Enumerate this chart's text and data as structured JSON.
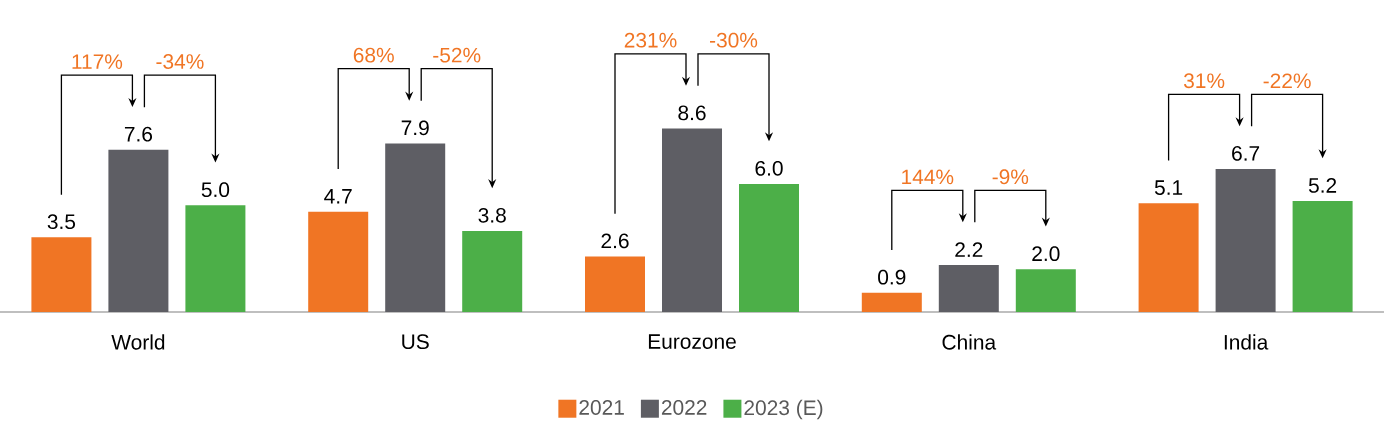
{
  "chart_data": {
    "type": "bar",
    "categories": [
      "World",
      "US",
      "Eurozone",
      "China",
      "India"
    ],
    "series": [
      {
        "name": "2021",
        "color": "#f07524",
        "values": [
          3.5,
          4.7,
          2.6,
          0.9,
          5.1
        ],
        "value_labels": [
          "3.5",
          "4.7",
          "2.6",
          "0.9",
          "5.1"
        ]
      },
      {
        "name": "2022",
        "color": "#5e5e64",
        "values": [
          7.6,
          7.9,
          8.6,
          2.2,
          6.7
        ],
        "value_labels": [
          "7.6",
          "7.9",
          "8.6",
          "2.2",
          "6.7"
        ]
      },
      {
        "name": "2023 (E)",
        "color": "#4caf48",
        "values": [
          5.0,
          3.8,
          6.0,
          2.0,
          5.2
        ],
        "value_labels": [
          "5.0",
          "3.8",
          "6.0",
          "2.0",
          "5.2"
        ]
      }
    ],
    "annotations": [
      "117%",
      "-34%",
      "68%",
      "-52%",
      "231%",
      "-30%",
      "144%",
      "-9%",
      "31%",
      "-22%"
    ],
    "legend": "bottom"
  }
}
